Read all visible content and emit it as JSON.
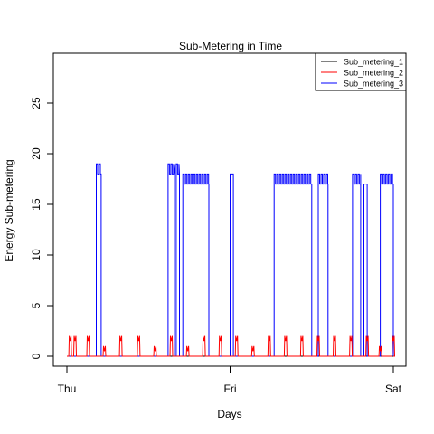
{
  "chart_data": {
    "type": "line",
    "title": "Sub-Metering in Time",
    "xlabel": "Days",
    "ylabel": "Energy Sub-metering",
    "x_ticks": [
      "Thu",
      "Fri",
      "Sat"
    ],
    "x_tick_positions": [
      0,
      1,
      2
    ],
    "xlim": [
      0,
      2
    ],
    "ylim": [
      0,
      28
    ],
    "y_ticks": [
      0,
      5,
      10,
      15,
      20,
      25
    ],
    "legend_position": "top-right",
    "grid": false,
    "series": [
      {
        "name": "Sub_metering_1",
        "color": "#000000",
        "points": [
          [
            0,
            0
          ],
          [
            2,
            0
          ]
        ]
      },
      {
        "name": "Sub_metering_2",
        "color": "#ff0000",
        "pulses": [
          [
            0.02,
            2
          ],
          [
            0.05,
            2
          ],
          [
            0.13,
            2
          ],
          [
            0.23,
            1
          ],
          [
            0.33,
            2
          ],
          [
            0.44,
            2
          ],
          [
            0.54,
            1
          ],
          [
            0.64,
            2
          ],
          [
            0.74,
            1
          ],
          [
            0.84,
            2
          ],
          [
            0.94,
            2
          ],
          [
            1.04,
            2
          ],
          [
            1.14,
            1
          ],
          [
            1.24,
            2
          ],
          [
            1.34,
            2
          ],
          [
            1.44,
            2
          ],
          [
            1.54,
            2
          ],
          [
            1.64,
            2
          ],
          [
            1.74,
            2
          ],
          [
            1.84,
            2
          ],
          [
            1.92,
            1
          ],
          [
            2.0,
            2
          ]
        ]
      },
      {
        "name": "Sub_metering_3",
        "color": "#0000ff",
        "segments": [
          [
            0.18,
            0.21,
            18,
            19
          ],
          [
            0.62,
            0.66,
            18,
            19
          ],
          [
            0.67,
            0.69,
            18,
            19
          ],
          [
            0.71,
            0.87,
            17,
            18
          ],
          [
            1.0,
            1.02,
            18,
            18
          ],
          [
            1.27,
            1.5,
            17,
            18
          ],
          [
            1.54,
            1.6,
            17,
            18
          ],
          [
            1.75,
            1.8,
            17,
            18
          ],
          [
            1.82,
            1.84,
            17,
            17
          ],
          [
            1.92,
            2.0,
            17,
            18
          ]
        ]
      }
    ]
  }
}
